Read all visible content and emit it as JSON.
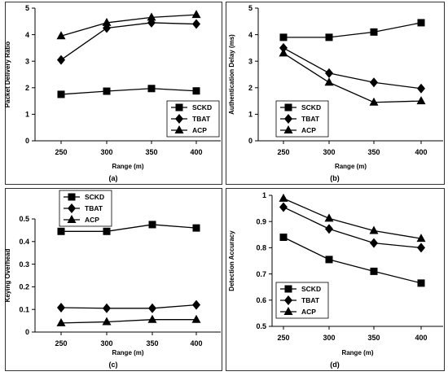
{
  "chart_data": [
    {
      "type": "line",
      "caption": "(a)",
      "xlabel": "Range (m)",
      "ylabel": "Packet Delivery Ratio",
      "categories": [
        "250",
        "300",
        "350",
        "400"
      ],
      "ylim": [
        0,
        5
      ],
      "yticks": [
        "0",
        "1",
        "2",
        "3",
        "4",
        "5"
      ],
      "legend_position": "bottom-right",
      "series": [
        {
          "name": "SCKD",
          "marker": "square",
          "values": [
            1.75,
            1.87,
            1.97,
            1.88
          ]
        },
        {
          "name": "TBAT",
          "marker": "diamond",
          "values": [
            3.05,
            4.25,
            4.45,
            4.4
          ]
        },
        {
          "name": "ACP",
          "marker": "triangle",
          "values": [
            3.95,
            4.45,
            4.65,
            4.75
          ]
        }
      ]
    },
    {
      "type": "line",
      "caption": "(b)",
      "xlabel": "Range (m)",
      "ylabel": "Authentication Delay (ms)",
      "categories": [
        "250",
        "300",
        "350",
        "400"
      ],
      "ylim": [
        0,
        5
      ],
      "yticks": [
        "0",
        "1",
        "2",
        "3",
        "4",
        "5"
      ],
      "legend_position": "bottom-left",
      "series": [
        {
          "name": "SCKD",
          "marker": "square",
          "values": [
            3.9,
            3.9,
            4.1,
            4.45
          ]
        },
        {
          "name": "TBAT",
          "marker": "diamond",
          "values": [
            3.5,
            2.55,
            2.2,
            1.97
          ]
        },
        {
          "name": "ACP",
          "marker": "triangle",
          "values": [
            3.3,
            2.2,
            1.45,
            1.5
          ]
        }
      ]
    },
    {
      "type": "line",
      "caption": "(c)",
      "xlabel": "Range (m)",
      "ylabel": "Keying Overhead",
      "categories": [
        "250",
        "300",
        "350",
        "400"
      ],
      "ylim": [
        0,
        0.5
      ],
      "yticks": [
        "0",
        "0.1",
        "0.2",
        "0.3",
        "0.4",
        "0.5"
      ],
      "legend_position": "top-left",
      "series": [
        {
          "name": "SCKD",
          "marker": "square",
          "values": [
            0.445,
            0.445,
            0.475,
            0.46
          ]
        },
        {
          "name": "TBAT",
          "marker": "diamond",
          "values": [
            0.108,
            0.105,
            0.105,
            0.12
          ]
        },
        {
          "name": "ACP",
          "marker": "triangle",
          "values": [
            0.04,
            0.045,
            0.055,
            0.055
          ]
        }
      ]
    },
    {
      "type": "line",
      "caption": "(d)",
      "xlabel": "Range (m)",
      "ylabel": "Detection Accuracy",
      "categories": [
        "250",
        "300",
        "350",
        "400"
      ],
      "ylim": [
        0.5,
        1
      ],
      "yticks": [
        "0.5",
        "0.6",
        "0.7",
        "0.8",
        "0.9",
        "1"
      ],
      "legend_position": "bottom-left",
      "series": [
        {
          "name": "SCKD",
          "marker": "square",
          "values": [
            0.84,
            0.755,
            0.71,
            0.665
          ]
        },
        {
          "name": "TBAT",
          "marker": "diamond",
          "values": [
            0.955,
            0.872,
            0.818,
            0.8
          ]
        },
        {
          "name": "ACP",
          "marker": "triangle",
          "values": [
            0.988,
            0.912,
            0.865,
            0.835
          ]
        }
      ]
    }
  ]
}
